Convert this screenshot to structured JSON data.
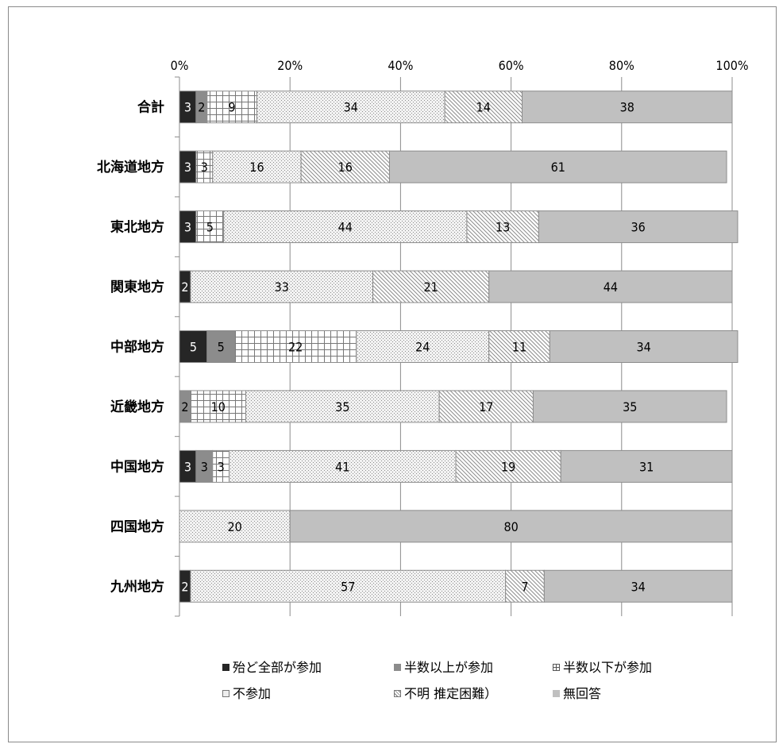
{
  "chart_data": {
    "type": "bar",
    "orientation": "horizontal",
    "stacked": "percent",
    "x_ticks": [
      "0%",
      "20%",
      "40%",
      "60%",
      "80%",
      "100%"
    ],
    "categories": [
      "合計",
      "北海道地方",
      "東北地方",
      "関東地方",
      "中部地方",
      "近畿地方",
      "中国地方",
      "四国地方",
      "九州地方"
    ],
    "series": [
      {
        "name": "殆ど全部が参加",
        "color": "#262626",
        "pattern": "solid",
        "values": [
          3,
          3,
          3,
          2,
          5,
          0,
          3,
          0,
          2
        ],
        "labels": [
          "3",
          "3",
          "3",
          "2",
          "5",
          "",
          "3",
          "",
          "2"
        ]
      },
      {
        "name": "半数以上が参加",
        "color": "#8c8c8c",
        "pattern": "solid",
        "values": [
          2,
          0,
          0,
          0,
          5,
          2,
          3,
          0,
          0
        ],
        "labels": [
          "2",
          "",
          "",
          "",
          "5",
          "2",
          "3",
          "",
          ""
        ]
      },
      {
        "name": "半数以下が参加",
        "color": "#ffffff",
        "pattern": "grid",
        "values": [
          9,
          3,
          5,
          0,
          22,
          10,
          3,
          0,
          0
        ],
        "labels": [
          "9",
          "3",
          "5",
          "",
          "22",
          "10",
          "3",
          "",
          ""
        ]
      },
      {
        "name": "不参加",
        "color": "#e8e8e8",
        "pattern": "dots",
        "values": [
          34,
          16,
          44,
          33,
          24,
          35,
          41,
          20,
          57
        ],
        "labels": [
          "34",
          "16",
          "44",
          "33",
          "24",
          "35",
          "41",
          "20",
          "57"
        ]
      },
      {
        "name": "不明 推定困難）",
        "color": "#ffffff",
        "pattern": "diagonal",
        "values": [
          14,
          16,
          13,
          21,
          11,
          17,
          19,
          0,
          7
        ],
        "labels": [
          "14",
          "16",
          "13",
          "21",
          "11",
          "17",
          "19",
          "",
          "7"
        ]
      },
      {
        "name": "無回答",
        "color": "#c0c0c0",
        "pattern": "solid",
        "values": [
          38,
          61,
          36,
          44,
          34,
          35,
          31,
          80,
          34
        ],
        "labels": [
          "38",
          "61",
          "36",
          "44",
          "34",
          "35",
          "31",
          "80",
          "34"
        ]
      }
    ],
    "xlim": [
      0,
      100
    ],
    "grid": true,
    "legend_position": "bottom"
  }
}
